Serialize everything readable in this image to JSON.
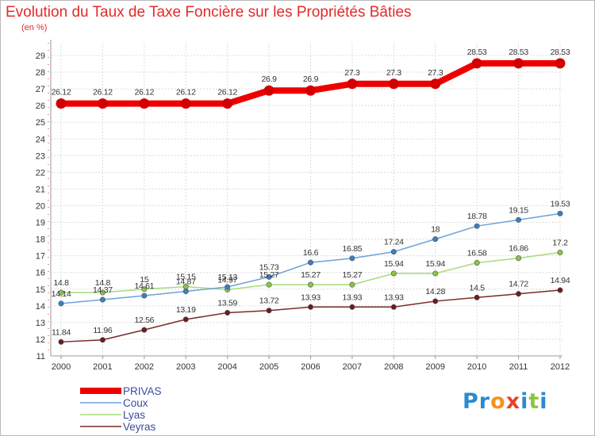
{
  "title": "Evolution du Taux de Taxe Foncière sur les Propriétés Bâties",
  "subtitle": "(en %)",
  "logo": {
    "letters": [
      "P",
      "r",
      "o",
      "x",
      "i",
      "t",
      "i"
    ],
    "colors": [
      "#2a8ad0",
      "#2a8ad0",
      "#f5921e",
      "#e8412a",
      "#2a8ad0",
      "#8bc53f",
      "#2a8ad0"
    ]
  },
  "chart_data": {
    "type": "line",
    "x": [
      "2000",
      "2001",
      "2002",
      "2003",
      "2004",
      "2005",
      "2006",
      "2007",
      "2008",
      "2009",
      "2010",
      "2011",
      "2012"
    ],
    "ylim": [
      11,
      29
    ],
    "yticks": [
      "11",
      "12",
      "13",
      "14",
      "15",
      "16",
      "17",
      "18",
      "19",
      "20",
      "21",
      "22",
      "23",
      "24",
      "25",
      "26",
      "27",
      "28",
      "29"
    ],
    "grid": true,
    "legend_position": "bottom-left",
    "series": [
      {
        "name": "PRIVAS",
        "color": "#ee0000",
        "marker_color": "#d40000",
        "values": [
          26.12,
          26.12,
          26.12,
          26.12,
          26.12,
          26.9,
          26.9,
          27.3,
          27.3,
          27.3,
          28.53,
          28.53,
          28.53
        ],
        "labels": [
          "26.12",
          "26.12",
          "26.12",
          "26.12",
          "26.12",
          "26.9",
          "26.9",
          "27.3",
          "27.3",
          "27.3",
          "28.53",
          "28.53",
          "28.53"
        ]
      },
      {
        "name": "Coux",
        "color": "#6aa3d8",
        "marker_color": "#3a7fc4",
        "values": [
          14.14,
          14.37,
          14.61,
          14.87,
          15.13,
          15.73,
          16.6,
          16.85,
          17.24,
          18,
          18.78,
          19.15,
          19.53
        ],
        "labels": [
          "14.14",
          "14.37",
          "14.61",
          "14.87",
          "15.13",
          "15.73",
          "16.6",
          "16.85",
          "17.24",
          "18",
          "18.78",
          "19.15",
          "19.53"
        ]
      },
      {
        "name": "Lyas",
        "color": "#a6dc7a",
        "marker_color": "#8bc53f",
        "values": [
          14.8,
          14.8,
          15,
          15.15,
          14.97,
          15.27,
          15.27,
          15.27,
          15.94,
          15.94,
          16.58,
          16.86,
          17.2
        ],
        "labels": [
          "14.8",
          "14.8",
          "15",
          "15.15",
          "14.97",
          "15.27",
          "15.27",
          "15.27",
          "15.94",
          "15.94",
          "16.58",
          "16.86",
          "17.2"
        ]
      },
      {
        "name": "Veyras",
        "color": "#7a2a2a",
        "marker_color": "#6b1c1c",
        "values": [
          11.84,
          11.96,
          12.56,
          13.19,
          13.59,
          13.72,
          13.93,
          13.93,
          13.93,
          14.28,
          14.5,
          14.72,
          14.94
        ],
        "labels": [
          "11.84",
          "11.96",
          "12.56",
          "13.19",
          "13.59",
          "13.72",
          "13.93",
          "13.93",
          "13.93",
          "14.28",
          "14.5",
          "14.72",
          "14.94"
        ]
      }
    ]
  }
}
